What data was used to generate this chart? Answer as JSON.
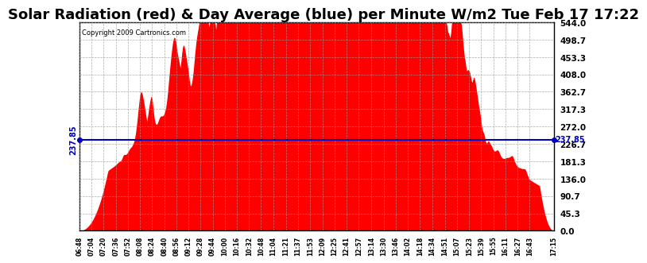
{
  "title": "Solar Radiation (red) & Day Average (blue) per Minute W/m2 Tue Feb 17 17:22",
  "copyright": "Copyright 2009 Cartronics.com",
  "y_max": 544.0,
  "y_min": 0.0,
  "y_ticks": [
    0.0,
    45.3,
    90.7,
    136.0,
    181.3,
    226.7,
    272.0,
    317.3,
    362.7,
    408.0,
    453.3,
    498.7,
    544.0
  ],
  "avg_value": 237.85,
  "fill_color": "#FF0000",
  "avg_line_color": "#0000BB",
  "background_color": "#FFFFFF",
  "grid_color": "#999999",
  "title_fontsize": 13,
  "x_labels": [
    "06:48",
    "07:04",
    "07:20",
    "07:36",
    "07:52",
    "08:08",
    "08:24",
    "08:40",
    "08:56",
    "09:12",
    "09:28",
    "09:44",
    "10:00",
    "10:16",
    "10:32",
    "10:48",
    "11:04",
    "11:21",
    "11:37",
    "11:53",
    "12:09",
    "12:25",
    "12:41",
    "12:57",
    "13:14",
    "13:30",
    "13:46",
    "14:02",
    "14:18",
    "14:34",
    "14:51",
    "15:07",
    "15:23",
    "15:39",
    "15:55",
    "16:11",
    "16:27",
    "16:43",
    "17:15"
  ],
  "num_points": 627
}
